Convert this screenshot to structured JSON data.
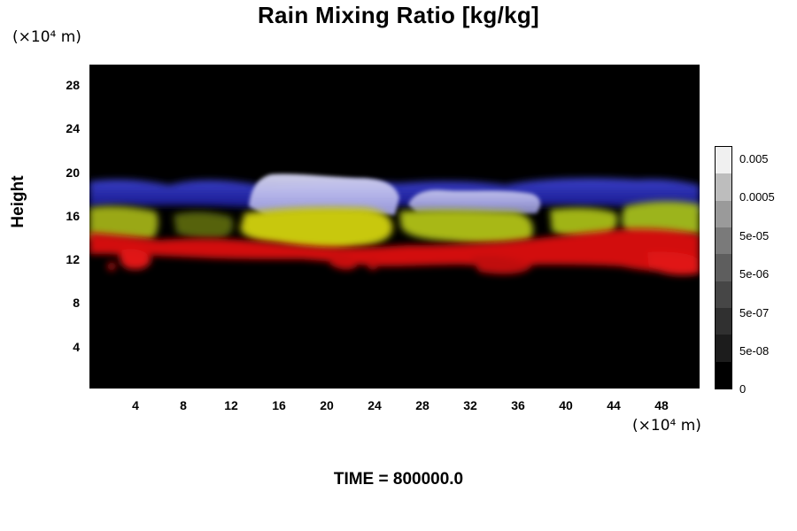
{
  "chart_data": {
    "type": "heatmap",
    "title": "Rain Mixing Ratio [kg/kg]",
    "xlabel": "",
    "xunit": "(×10⁴ m)",
    "ylabel": "Height",
    "yunit": "(×10⁴ m)",
    "xlim": [
      0,
      51
    ],
    "ylim": [
      0,
      30
    ],
    "x_ticks": [
      "4",
      "8",
      "12",
      "16",
      "20",
      "24",
      "28",
      "32",
      "36",
      "40",
      "44",
      "48"
    ],
    "y_ticks": [
      "4",
      "8",
      "12",
      "16",
      "20",
      "24",
      "28"
    ],
    "colorbar": {
      "labels": [
        "0.005",
        "0.0005",
        "5e-05",
        "5e-06",
        "5e-07",
        "5e-08",
        "0"
      ],
      "colors": [
        "#f0f0f0",
        "#bdbdbd",
        "#9a9a9a",
        "#7a7a7a",
        "#5e5e5e",
        "#464646",
        "#303030",
        "#1c1c1c",
        "#000000"
      ]
    },
    "layers": [
      {
        "name": "red",
        "color": "#e01010",
        "y_range": [
          11,
          14.5
        ]
      },
      {
        "name": "yellow",
        "color": "#b8c010",
        "y_range": [
          13.5,
          17.5
        ]
      },
      {
        "name": "blue",
        "color": "#2020c0",
        "y_range": [
          16.5,
          19.5
        ]
      }
    ],
    "time_text": "TIME = 800000.0"
  }
}
